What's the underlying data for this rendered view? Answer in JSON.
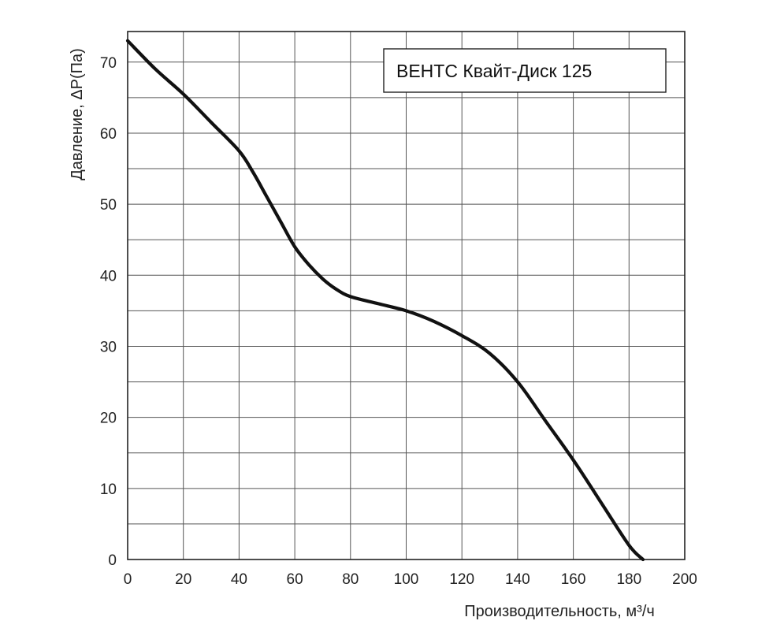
{
  "chart_data": {
    "type": "line",
    "title": "",
    "xlabel": "Производительность, м³/ч",
    "ylabel": "Давление, ΔP(Па)",
    "xlim": [
      0,
      200
    ],
    "ylim": [
      0,
      70
    ],
    "x_ticks": [
      0,
      20,
      40,
      60,
      80,
      100,
      120,
      140,
      160,
      180,
      200
    ],
    "y_ticks": [
      0,
      10,
      20,
      30,
      40,
      50,
      60,
      70
    ],
    "grid": true,
    "legend_placement": "top-right",
    "series": [
      {
        "name": "ВЕНТС Квайт-Диск 125",
        "color": "#111111",
        "x": [
          0,
          10,
          20,
          30,
          40,
          45,
          50,
          55,
          60,
          65,
          70,
          75,
          80,
          90,
          100,
          110,
          120,
          130,
          140,
          150,
          160,
          170,
          180,
          185
        ],
        "y": [
          73,
          69,
          65.5,
          61.5,
          57.5,
          54.5,
          51,
          47.5,
          44,
          41.5,
          39.5,
          38,
          37,
          36,
          35,
          33.5,
          31.5,
          29,
          25,
          19.5,
          14,
          8,
          2,
          0
        ]
      }
    ]
  }
}
